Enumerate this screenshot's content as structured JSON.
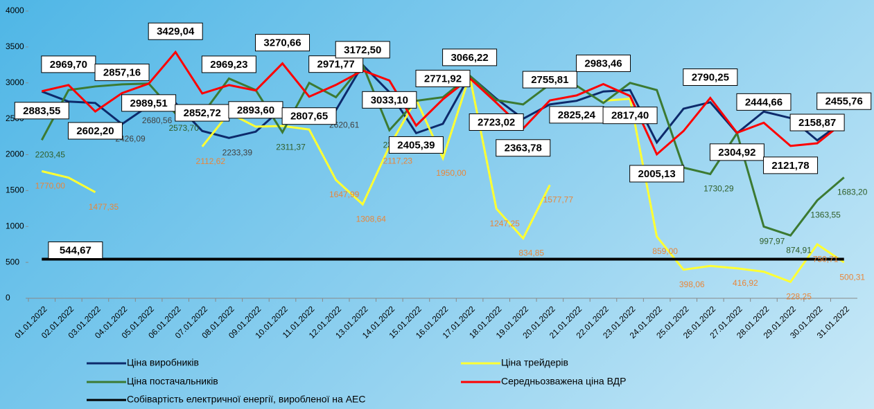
{
  "chart_data": {
    "type": "line",
    "categories": [
      "01.01.2022",
      "02.01.2022",
      "03.01.2022",
      "04.01.2022",
      "05.01.2022",
      "06.01.2022",
      "07.01.2022",
      "08.01.2022",
      "09.01.2022",
      "10.01.2022",
      "11.01.2022",
      "12.01.2022",
      "13.01.2022",
      "14.01.2022",
      "15.01.2022",
      "16.01.2022",
      "17.01.2022",
      "18.01.2022",
      "19.01.2022",
      "20.01.2022",
      "21.01.2022",
      "22.01.2022",
      "23.01.2022",
      "24.01.2022",
      "25.01.2022",
      "26.01.2022",
      "27.01.2022",
      "28.01.2022",
      "29.01.2022",
      "30.01.2022",
      "31.01.2022"
    ],
    "ylim": [
      0,
      4000
    ],
    "yticks": [
      0,
      500,
      1000,
      1500,
      2000,
      2500,
      3000,
      3500,
      4000
    ],
    "series": [
      {
        "name": "Ціна виробників",
        "color": "#0d2a6b",
        "label_style": "plain",
        "label_color": "#404040",
        "values": [
          2880,
          2740,
          2720,
          2426.09,
          2680.56,
          2720,
          2330,
          2233.39,
          2320,
          2650,
          2500,
          2620.61,
          3250,
          2870,
          2300,
          2430,
          3100,
          2780,
          2500,
          2700,
          2750,
          2880,
          2900,
          2170,
          2640,
          2730,
          2300,
          2600,
          2510,
          2200,
          2470
        ],
        "value_labels": [
          null,
          null,
          null,
          "2426,09",
          "2680,56",
          null,
          null,
          "2233,39",
          null,
          null,
          null,
          "2620,61",
          null,
          null,
          null,
          null,
          null,
          null,
          null,
          null,
          null,
          null,
          null,
          null,
          null,
          null,
          null,
          null,
          null,
          null,
          null
        ]
      },
      {
        "name": "Ціна трейдерів",
        "color": "#ffff33",
        "label_style": "plain",
        "label_color": "#e8863a",
        "values": [
          1770,
          1680,
          1477.35,
          null,
          null,
          null,
          2112.62,
          2580,
          2390,
          2400,
          2350,
          1647.99,
          1308.64,
          2117.23,
          2770,
          1950,
          3100,
          1247.25,
          834.85,
          1577.77,
          null,
          2750,
          2780,
          859,
          398.06,
          450,
          416.92,
          370,
          228.25,
          750.71,
          500.31
        ],
        "value_labels": [
          "1770,00",
          null,
          "1477,35",
          null,
          null,
          null,
          "2112,62",
          null,
          null,
          null,
          null,
          "1647,99",
          "1308,64",
          "2117,23",
          null,
          "1950,00",
          null,
          "1247,25",
          "834,85",
          "1577,77",
          null,
          null,
          null,
          "859,00",
          "398,06",
          null,
          "416,92",
          null,
          "228,25",
          "750,71",
          "500,31"
        ]
      },
      {
        "name": "Ціна постачальників",
        "color": "#3c7a32",
        "label_style": "plain",
        "label_color": "#2f5e28",
        "values": [
          2203.45,
          2900,
          2950,
          2980,
          2990,
          2573.7,
          2560,
          3060,
          2900,
          2311.37,
          3000,
          2800,
          3250,
          2341.11,
          2750,
          2800,
          3100,
          2760,
          2700,
          2980,
          2960,
          2720,
          3000,
          2900,
          1820,
          1730.29,
          2300,
          997.97,
          874.91,
          1363.55,
          1683.2
        ],
        "value_labels": [
          "2203,45",
          null,
          null,
          null,
          null,
          "2573,70",
          null,
          null,
          null,
          "2311,37",
          null,
          null,
          null,
          "2341,11",
          null,
          null,
          null,
          null,
          null,
          null,
          null,
          null,
          null,
          null,
          null,
          "1730,29",
          null,
          "997,97",
          "874,91",
          "1363,55",
          "1683,20"
        ]
      },
      {
        "name": "Середньозважена ціна ВДР",
        "color": "#ff0000",
        "label_style": "box",
        "values": [
          2883.55,
          2969.7,
          2602.2,
          2857.16,
          2989.51,
          3429.04,
          2852.72,
          2969.23,
          2893.6,
          3270.66,
          2807.65,
          2971.77,
          3172.5,
          3033.1,
          2405.39,
          2771.92,
          3066.22,
          2723.02,
          2363.78,
          2755.81,
          2825.24,
          2983.46,
          2817.4,
          2005.13,
          2330,
          2790.25,
          2304.92,
          2444.66,
          2121.78,
          2158.87,
          2455.76
        ],
        "value_labels": [
          "2883,55",
          "2969,70",
          "2602,20",
          "2857,16",
          "2989,51",
          "3429,04",
          "2852,72",
          "2969,23",
          "2893,60",
          "3270,66",
          "2807,65",
          "2971,77",
          "3172,50",
          "3033,10",
          "2405,39",
          "2771,92",
          "3066,22",
          "2723,02",
          "2363,78",
          "2755,81",
          "2825,24",
          "2983,46",
          "2817,40",
          "2005,13",
          null,
          "2790,25",
          "2304,92",
          "2444,66",
          "2121,78",
          "2158,87",
          "2455,76"
        ]
      },
      {
        "name": "Собівартість електричної енергії, виробленої на АЕС",
        "color": "#000000",
        "label_style": "box",
        "values": [
          544.67,
          544.67,
          544.67,
          544.67,
          544.67,
          544.67,
          544.67,
          544.67,
          544.67,
          544.67,
          544.67,
          544.67,
          544.67,
          544.67,
          544.67,
          544.67,
          544.67,
          544.67,
          544.67,
          544.67,
          544.67,
          544.67,
          544.67,
          544.67,
          544.67,
          544.67,
          544.67,
          544.67,
          544.67,
          544.67,
          544.67
        ],
        "value_labels": [
          null,
          "544,67",
          null,
          null,
          null,
          null,
          null,
          null,
          null,
          null,
          null,
          null,
          null,
          null,
          null,
          null,
          null,
          null,
          null,
          null,
          null,
          null,
          null,
          null,
          null,
          null,
          null,
          null,
          null,
          null,
          null
        ]
      }
    ]
  }
}
